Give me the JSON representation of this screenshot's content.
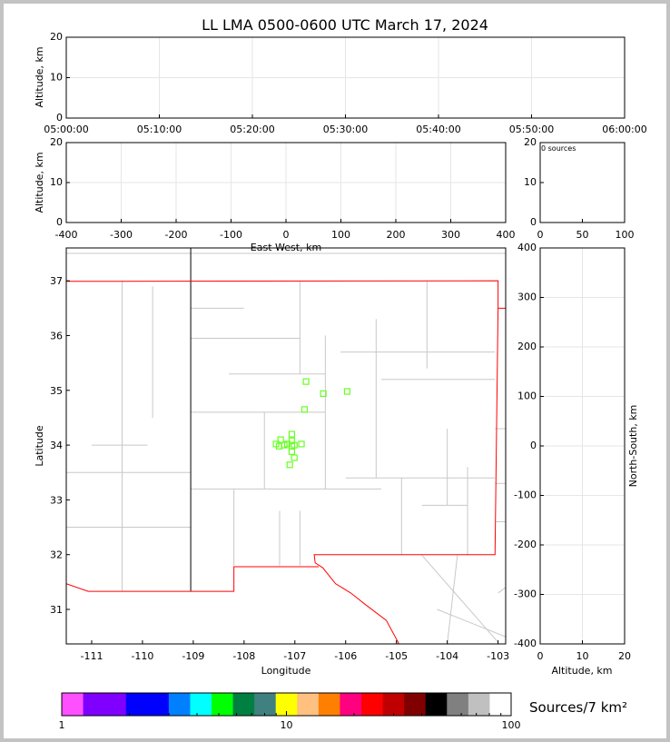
{
  "chart_data": [
    {
      "type": "scatter",
      "panel": "time-height",
      "title": "LL LMA 0500-0600 UTC March 17, 2024",
      "ylabel": "Altitude, km",
      "xlim": [
        "05:00:00",
        "06:00:00"
      ],
      "ylim": [
        0,
        20
      ],
      "xticks": [
        "05:00:00",
        "05:10:00",
        "05:20:00",
        "05:30:00",
        "05:40:00",
        "05:50:00",
        "06:00:00"
      ],
      "yticks": [
        "0",
        "10",
        "20"
      ],
      "grid": true,
      "points": []
    },
    {
      "type": "scatter",
      "panel": "east-west-altitude",
      "xlabel": "East-West, km",
      "ylabel": "Altitude, km",
      "xlim": [
        -400,
        400
      ],
      "ylim": [
        0,
        20
      ],
      "xticks": [
        "-400",
        "-300",
        "-200",
        "-100",
        "0",
        "100",
        "200",
        "300",
        "400"
      ],
      "yticks": [
        "0",
        "10",
        "20"
      ],
      "grid": true,
      "points": []
    },
    {
      "type": "bar",
      "panel": "altitude-histogram",
      "annotation": "0 sources",
      "xlim": [
        0,
        100
      ],
      "ylim": [
        0,
        20
      ],
      "xticks": [
        "0",
        "50",
        "100"
      ],
      "yticks": [
        "0",
        "10",
        "20"
      ],
      "values": []
    },
    {
      "type": "scatter",
      "panel": "plan-view-map",
      "xlabel": "Longitude",
      "ylabel": "Latitude",
      "xlim": [
        -111.5,
        -102.85
      ],
      "ylim": [
        30.37,
        37.6
      ],
      "xticks": [
        "-111",
        "-110",
        "-109",
        "-108",
        "-107",
        "-106",
        "-105",
        "-104",
        "-103"
      ],
      "yticks": [
        "31",
        "32",
        "33",
        "34",
        "35",
        "36",
        "37"
      ],
      "station_color": "#66ff22",
      "stations": [
        [
          -106.78,
          35.16
        ],
        [
          -106.44,
          34.94
        ],
        [
          -105.97,
          34.98
        ],
        [
          -106.81,
          34.65
        ],
        [
          -107.06,
          34.2
        ],
        [
          -107.06,
          34.08
        ],
        [
          -107.28,
          34.1
        ],
        [
          -107.37,
          34.02
        ],
        [
          -107.31,
          33.98
        ],
        [
          -107.21,
          34.0
        ],
        [
          -107.15,
          34.02
        ],
        [
          -107.06,
          33.98
        ],
        [
          -107.01,
          34.0
        ],
        [
          -106.87,
          34.02
        ],
        [
          -107.06,
          33.88
        ],
        [
          -107.01,
          33.77
        ],
        [
          -107.1,
          33.64
        ]
      ],
      "points": []
    },
    {
      "type": "scatter",
      "panel": "altitude-north-south",
      "xlabel": "Altitude, km",
      "ylabel": "North-South, km",
      "xlim": [
        0,
        20
      ],
      "ylim": [
        -400,
        400
      ],
      "xticks": [
        "0",
        "10",
        "20"
      ],
      "yticks": [
        "-400",
        "-300",
        "-200",
        "-100",
        "0",
        "100",
        "200",
        "300",
        "400"
      ],
      "grid": true,
      "points": []
    },
    {
      "type": "colorbar",
      "label": "Sources/7 km²",
      "scale": "log",
      "range": [
        1,
        100
      ],
      "tick_labels": [
        "1",
        "10",
        "100"
      ],
      "colors": [
        "#ff50ff",
        "#8000ff",
        "#8000ff",
        "#0000ff",
        "#0000ff",
        "#0080ff",
        "#00ffff",
        "#00ff00",
        "#008040",
        "#408080",
        "#ffff00",
        "#ffc080",
        "#ff8000",
        "#ff0080",
        "#ff0000",
        "#c00000",
        "#800000",
        "#000000",
        "#808080",
        "#c0c0c0",
        "#ffffff"
      ]
    }
  ]
}
